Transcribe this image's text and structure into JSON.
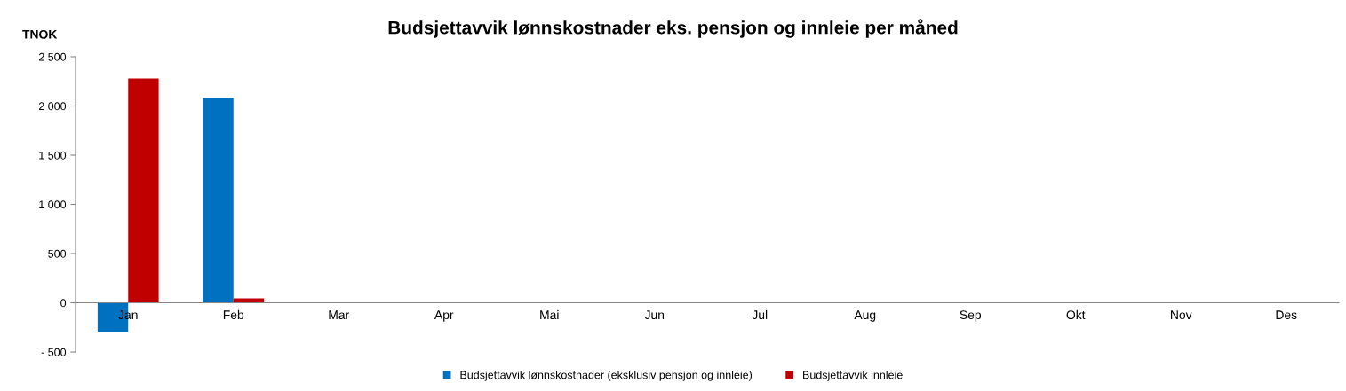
{
  "chart_data": {
    "type": "bar",
    "title": "Budsjettavvik lønnskostnader eks. pensjon og innleie per måned",
    "ylabel": "TNOK",
    "categories": [
      "Jan",
      "Feb",
      "Mar",
      "Apr",
      "Mai",
      "Jun",
      "Jul",
      "Aug",
      "Sep",
      "Okt",
      "Nov",
      "Des"
    ],
    "series": [
      {
        "name": "Budsjettavvik lønnskostnader (eksklusiv pensjon og innleie)",
        "color": "#0070c0",
        "values": [
          -300,
          2080,
          null,
          null,
          null,
          null,
          null,
          null,
          null,
          null,
          null,
          null
        ]
      },
      {
        "name": "Budsjettavvik innleie",
        "color": "#c00000",
        "values": [
          2280,
          45,
          null,
          null,
          null,
          null,
          null,
          null,
          null,
          null,
          null,
          null
        ]
      }
    ],
    "ylim": [
      -500,
      2500
    ],
    "yticks": [
      {
        "value": -500,
        "label": "- 500"
      },
      0,
      500,
      {
        "value": 1000,
        "label": "1 000"
      },
      {
        "value": 1500,
        "label": "1 500"
      },
      {
        "value": 2000,
        "label": "2 000"
      },
      {
        "value": 2500,
        "label": "2 500"
      }
    ],
    "grid": false,
    "legend": "bottom"
  }
}
